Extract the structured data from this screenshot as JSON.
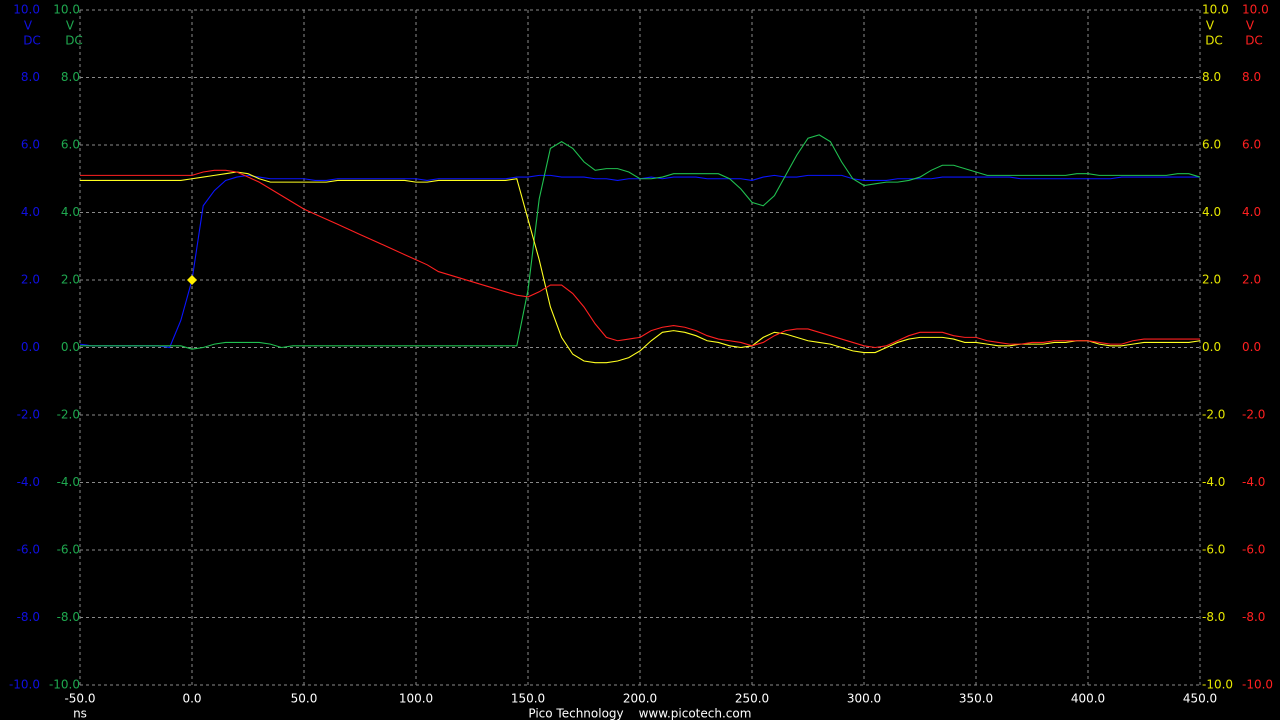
{
  "chart_data": {
    "type": "line",
    "x_unit": "ns",
    "footer": [
      "Pico Technology",
      "www.picotech.com"
    ],
    "xlim": [
      -50,
      450
    ],
    "xticks": [
      {
        "value": -50,
        "label": "-50.0"
      },
      {
        "value": 0,
        "label": "0.0"
      },
      {
        "value": 50,
        "label": "50.0"
      },
      {
        "value": 100,
        "label": "100.0"
      },
      {
        "value": 150,
        "label": "150.0"
      },
      {
        "value": 200,
        "label": "200.0"
      },
      {
        "value": 250,
        "label": "250.0"
      },
      {
        "value": 300,
        "label": "300.0"
      },
      {
        "value": 350,
        "label": "350.0"
      },
      {
        "value": 400,
        "label": "400.0"
      },
      {
        "value": 450,
        "label": "450.0"
      }
    ],
    "grid": true,
    "y_axes": [
      {
        "side": "left",
        "color": "#1010e0",
        "unit": "V",
        "coupling": "DC",
        "ylim": [
          -10,
          10
        ],
        "yticks": [
          {
            "value": -10,
            "label": "-10.0"
          },
          {
            "value": -8,
            "label": "-8.0"
          },
          {
            "value": -6,
            "label": "-6.0"
          },
          {
            "value": -4,
            "label": "-4.0"
          },
          {
            "value": -2,
            "label": "-2.0"
          },
          {
            "value": 0,
            "label": "0.0"
          },
          {
            "value": 2,
            "label": "2.0"
          },
          {
            "value": 4,
            "label": "4.0"
          },
          {
            "value": 6,
            "label": "6.0"
          },
          {
            "value": 8,
            "label": "8.0"
          },
          {
            "value": 10,
            "label": "10.0"
          }
        ]
      },
      {
        "side": "left",
        "color": "#1fa84f",
        "unit": "V",
        "coupling": "DC",
        "ylim": [
          -10,
          10
        ],
        "yticks": [
          {
            "value": -10,
            "label": "-10.0"
          },
          {
            "value": -8,
            "label": "-8.0"
          },
          {
            "value": -6,
            "label": "-6.0"
          },
          {
            "value": -4,
            "label": "-4.0"
          },
          {
            "value": -2,
            "label": "-2.0"
          },
          {
            "value": 0,
            "label": "0.0"
          },
          {
            "value": 2,
            "label": "2.0"
          },
          {
            "value": 4,
            "label": "4.0"
          },
          {
            "value": 6,
            "label": "6.0"
          },
          {
            "value": 8,
            "label": "8.0"
          },
          {
            "value": 10,
            "label": "10.0"
          }
        ]
      },
      {
        "side": "right",
        "color": "#e6e600",
        "unit": "V",
        "coupling": "DC",
        "ylim": [
          -10,
          10
        ],
        "yticks": [
          {
            "value": -10,
            "label": "-10.0"
          },
          {
            "value": -8,
            "label": "-8.0"
          },
          {
            "value": -6,
            "label": "-6.0"
          },
          {
            "value": -4,
            "label": "-4.0"
          },
          {
            "value": -2,
            "label": "-2.0"
          },
          {
            "value": 0,
            "label": "0.0"
          },
          {
            "value": 2,
            "label": "2.0"
          },
          {
            "value": 4,
            "label": "4.0"
          },
          {
            "value": 6,
            "label": "6.0"
          },
          {
            "value": 8,
            "label": "8.0"
          },
          {
            "value": 10,
            "label": "10.0"
          }
        ]
      },
      {
        "side": "right",
        "color": "#ff2020",
        "unit": "V",
        "coupling": "DC",
        "ylim": [
          -10,
          10
        ],
        "yticks": [
          {
            "value": -10,
            "label": "-10.0"
          },
          {
            "value": -8,
            "label": "-8.0"
          },
          {
            "value": -6,
            "label": "-6.0"
          },
          {
            "value": -4,
            "label": "-4.0"
          },
          {
            "value": -2,
            "label": "-2.0"
          },
          {
            "value": 0,
            "label": "0.0"
          },
          {
            "value": 2,
            "label": "2.0"
          },
          {
            "value": 4,
            "label": "4.0"
          },
          {
            "value": 6,
            "label": "6.0"
          },
          {
            "value": 8,
            "label": "8.0"
          },
          {
            "value": 10,
            "label": "10.0"
          }
        ]
      }
    ],
    "x": [
      -50,
      -45,
      -40,
      -35,
      -30,
      -25,
      -20,
      -15,
      -10,
      -5,
      0,
      5,
      10,
      15,
      20,
      25,
      30,
      35,
      40,
      45,
      50,
      55,
      60,
      65,
      70,
      75,
      80,
      85,
      90,
      95,
      100,
      105,
      110,
      115,
      120,
      125,
      130,
      135,
      140,
      145,
      150,
      155,
      160,
      165,
      170,
      175,
      180,
      185,
      190,
      195,
      200,
      205,
      210,
      215,
      220,
      225,
      230,
      235,
      240,
      245,
      250,
      255,
      260,
      265,
      270,
      275,
      280,
      285,
      290,
      295,
      300,
      305,
      310,
      315,
      320,
      325,
      330,
      335,
      340,
      345,
      350,
      355,
      360,
      365,
      370,
      375,
      380,
      385,
      390,
      395,
      400,
      405,
      410,
      415,
      420,
      425,
      430,
      435,
      440,
      445,
      450
    ],
    "series": [
      {
        "axis": 0,
        "color": "#0a14ff",
        "values": [
          0.1,
          0.05,
          0.05,
          0.05,
          0.05,
          0.05,
          0.05,
          0.05,
          0.0,
          0.8,
          2.0,
          4.2,
          4.65,
          4.95,
          5.05,
          5.1,
          5.05,
          5.0,
          5.0,
          5.0,
          5.0,
          4.95,
          4.95,
          5.0,
          5.0,
          5.0,
          5.0,
          5.0,
          5.0,
          5.0,
          5.0,
          4.95,
          5.0,
          5.0,
          5.0,
          5.0,
          5.0,
          5.0,
          5.0,
          5.05,
          5.05,
          5.1,
          5.1,
          5.05,
          5.05,
          5.05,
          5.0,
          5.0,
          4.95,
          5.0,
          5.0,
          5.05,
          5.0,
          5.05,
          5.05,
          5.05,
          5.0,
          5.0,
          5.0,
          5.0,
          4.95,
          5.05,
          5.1,
          5.05,
          5.05,
          5.1,
          5.1,
          5.1,
          5.1,
          5.0,
          4.95,
          4.95,
          4.95,
          5.0,
          5.0,
          5.0,
          5.0,
          5.05,
          5.05,
          5.05,
          5.05,
          5.05,
          5.05,
          5.05,
          5.0,
          5.0,
          5.0,
          5.0,
          5.0,
          5.0,
          5.0,
          5.0,
          5.0,
          5.05,
          5.05,
          5.05,
          5.05,
          5.05,
          5.05,
          5.05,
          5.05
        ]
      },
      {
        "axis": 1,
        "color": "#20c050",
        "values": [
          0.05,
          0.05,
          0.05,
          0.05,
          0.05,
          0.05,
          0.05,
          0.05,
          0.05,
          0.05,
          -0.05,
          0.0,
          0.1,
          0.15,
          0.15,
          0.15,
          0.15,
          0.1,
          0.0,
          0.05,
          0.05,
          0.05,
          0.05,
          0.05,
          0.05,
          0.05,
          0.05,
          0.05,
          0.05,
          0.05,
          0.05,
          0.05,
          0.05,
          0.05,
          0.05,
          0.05,
          0.05,
          0.05,
          0.05,
          0.05,
          1.7,
          4.4,
          5.9,
          6.1,
          5.9,
          5.5,
          5.25,
          5.3,
          5.3,
          5.2,
          5.0,
          5.0,
          5.05,
          5.15,
          5.15,
          5.15,
          5.15,
          5.15,
          5.0,
          4.7,
          4.3,
          4.2,
          4.5,
          5.1,
          5.7,
          6.2,
          6.3,
          6.1,
          5.5,
          5.0,
          4.8,
          4.85,
          4.9,
          4.9,
          4.95,
          5.05,
          5.25,
          5.4,
          5.4,
          5.3,
          5.2,
          5.1,
          5.1,
          5.1,
          5.1,
          5.1,
          5.1,
          5.1,
          5.1,
          5.15,
          5.15,
          5.1,
          5.1,
          5.1,
          5.1,
          5.1,
          5.1,
          5.1,
          5.15,
          5.15,
          5.05
        ]
      },
      {
        "axis": 2,
        "color": "#ffff20",
        "values": [
          4.95,
          4.95,
          4.95,
          4.95,
          4.95,
          4.95,
          4.95,
          4.95,
          4.95,
          4.95,
          5.0,
          5.05,
          5.1,
          5.15,
          5.2,
          5.15,
          5.0,
          4.9,
          4.9,
          4.9,
          4.9,
          4.9,
          4.9,
          4.95,
          4.95,
          4.95,
          4.95,
          4.95,
          4.95,
          4.95,
          4.9,
          4.9,
          4.95,
          4.95,
          4.95,
          4.95,
          4.95,
          4.95,
          4.95,
          5.0,
          3.8,
          2.6,
          1.2,
          0.3,
          -0.2,
          -0.4,
          -0.45,
          -0.45,
          -0.4,
          -0.3,
          -0.1,
          0.2,
          0.45,
          0.5,
          0.45,
          0.35,
          0.2,
          0.15,
          0.05,
          0.0,
          0.05,
          0.3,
          0.45,
          0.4,
          0.3,
          0.2,
          0.15,
          0.1,
          0.0,
          -0.1,
          -0.15,
          -0.15,
          0.0,
          0.15,
          0.25,
          0.3,
          0.3,
          0.3,
          0.25,
          0.15,
          0.15,
          0.1,
          0.05,
          0.05,
          0.1,
          0.1,
          0.1,
          0.15,
          0.15,
          0.2,
          0.2,
          0.1,
          0.05,
          0.05,
          0.1,
          0.15,
          0.15,
          0.15,
          0.15,
          0.15,
          0.2
        ]
      },
      {
        "axis": 3,
        "color": "#ff2020",
        "values": [
          5.1,
          5.1,
          5.1,
          5.1,
          5.1,
          5.1,
          5.1,
          5.1,
          5.1,
          5.1,
          5.1,
          5.2,
          5.25,
          5.25,
          5.2,
          5.05,
          4.9,
          4.7,
          4.5,
          4.3,
          4.1,
          3.95,
          3.8,
          3.65,
          3.5,
          3.35,
          3.2,
          3.05,
          2.9,
          2.75,
          2.6,
          2.45,
          2.25,
          2.15,
          2.05,
          1.95,
          1.85,
          1.75,
          1.65,
          1.55,
          1.5,
          1.65,
          1.85,
          1.85,
          1.6,
          1.2,
          0.7,
          0.3,
          0.2,
          0.25,
          0.3,
          0.5,
          0.6,
          0.65,
          0.6,
          0.5,
          0.35,
          0.25,
          0.2,
          0.15,
          0.05,
          0.15,
          0.35,
          0.5,
          0.55,
          0.55,
          0.45,
          0.35,
          0.25,
          0.15,
          0.05,
          0.0,
          0.05,
          0.2,
          0.35,
          0.45,
          0.45,
          0.45,
          0.35,
          0.3,
          0.3,
          0.2,
          0.15,
          0.1,
          0.1,
          0.15,
          0.15,
          0.2,
          0.2,
          0.2,
          0.2,
          0.15,
          0.1,
          0.1,
          0.2,
          0.25,
          0.25,
          0.25,
          0.25,
          0.25,
          0.25
        ]
      }
    ],
    "trigger": {
      "x": 0,
      "y": 2.0,
      "axis": 0,
      "color": "#ffee00"
    }
  }
}
